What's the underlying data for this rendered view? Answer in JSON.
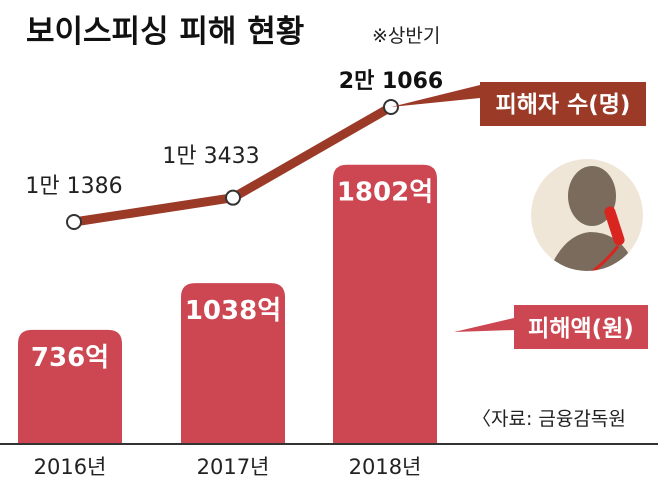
{
  "title": "보이스피싱 피해 현황",
  "note": "※상반기",
  "source": "〈자료: 금융감독원",
  "chart_data": {
    "type": "bar",
    "categories": [
      "2016년",
      "2017년",
      "2018년"
    ],
    "bars": {
      "name": "피해액(원)",
      "values": [
        736,
        1038,
        1802
      ],
      "labels": [
        "736억",
        "1038억",
        "1802억"
      ],
      "unit": "억",
      "color": "#cc4752"
    },
    "line": {
      "name": "피해자 수(명)",
      "values": [
        11386,
        13433,
        21066
      ],
      "labels": [
        "1만 1386",
        "1만 3433",
        "2만 1066"
      ],
      "color": "#9c3a28"
    },
    "legend": [
      "피해자 수(명)",
      "피해액(원)"
    ]
  }
}
